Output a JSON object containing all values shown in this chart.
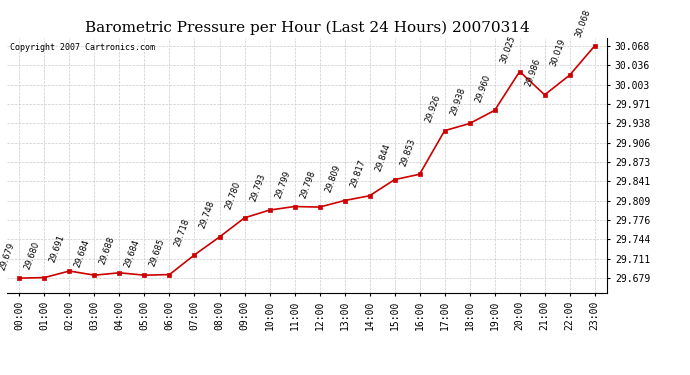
{
  "title": "Barometric Pressure per Hour (Last 24 Hours) 20070314",
  "copyright": "Copyright 2007 Cartronics.com",
  "hours": [
    "00:00",
    "01:00",
    "02:00",
    "03:00",
    "04:00",
    "05:00",
    "06:00",
    "07:00",
    "08:00",
    "09:00",
    "10:00",
    "11:00",
    "12:00",
    "13:00",
    "14:00",
    "15:00",
    "16:00",
    "17:00",
    "18:00",
    "19:00",
    "20:00",
    "21:00",
    "22:00",
    "23:00"
  ],
  "values": [
    29.679,
    29.68,
    29.691,
    29.684,
    29.688,
    29.684,
    29.685,
    29.718,
    29.748,
    29.78,
    29.793,
    29.799,
    29.798,
    29.809,
    29.817,
    29.844,
    29.853,
    29.926,
    29.938,
    29.96,
    30.025,
    29.986,
    30.019,
    30.068
  ],
  "line_color": "#cc0000",
  "marker_color": "#cc0000",
  "bg_color": "#ffffff",
  "grid_color": "#cccccc",
  "yticks": [
    29.679,
    29.711,
    29.744,
    29.776,
    29.809,
    29.841,
    29.873,
    29.906,
    29.938,
    29.971,
    30.003,
    30.036,
    30.068
  ],
  "ylim": [
    29.655,
    30.082
  ],
  "title_fontsize": 11,
  "copyright_fontsize": 6,
  "label_fontsize": 6,
  "tick_fontsize": 7
}
